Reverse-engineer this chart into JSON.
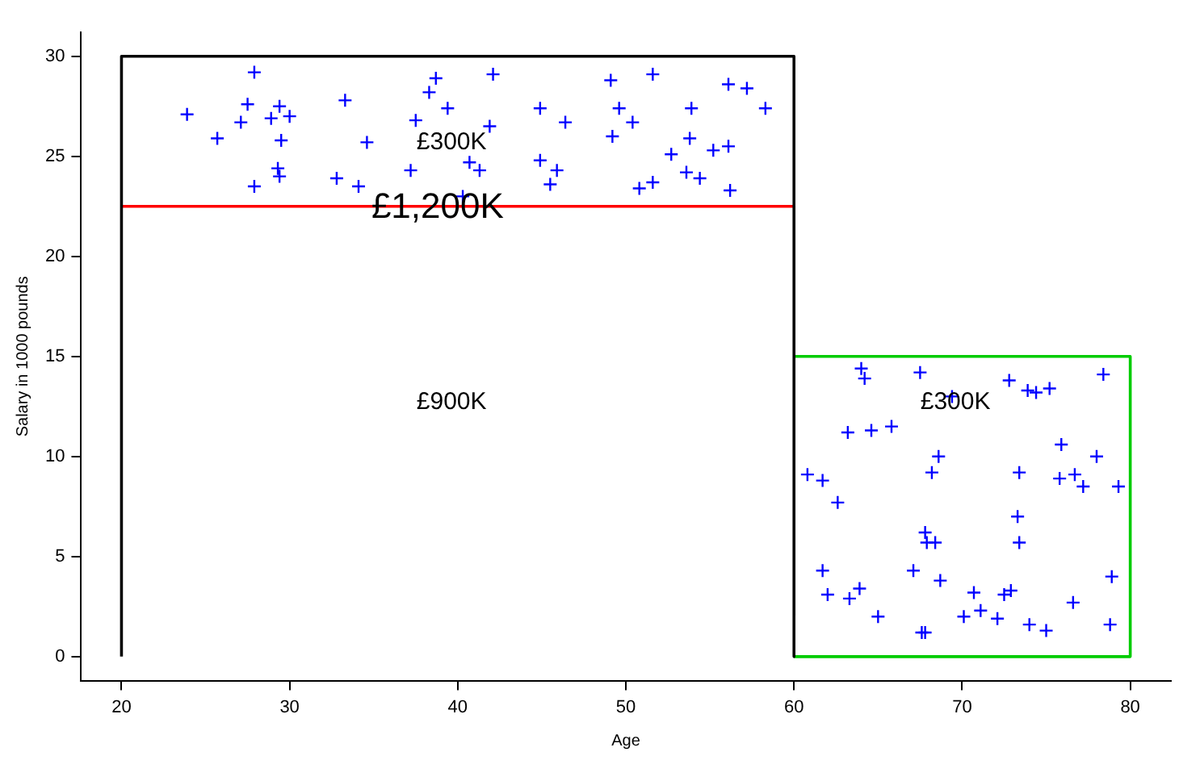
{
  "chart_data": {
    "type": "scatter",
    "xlabel": "Age",
    "ylabel": "Salary in 1000 pounds",
    "xlim": [
      17.6,
      82.4
    ],
    "ylim": [
      -1.2,
      31.2
    ],
    "xticks": [
      20,
      30,
      40,
      50,
      60,
      70,
      80
    ],
    "yticks": [
      0,
      5,
      10,
      15,
      20,
      25,
      30
    ],
    "grid": false,
    "legend": false,
    "marker": "cross",
    "series": [
      {
        "type": "line",
        "color": "#000000",
        "marker": "none",
        "x": [
          20,
          20,
          60,
          60
        ],
        "values": [
          0,
          30,
          30,
          0
        ]
      },
      {
        "type": "line",
        "color": "#00cc00",
        "marker": "none",
        "x": [
          60,
          80,
          80,
          60
        ],
        "values": [
          0,
          0,
          15,
          15
        ]
      },
      {
        "type": "line",
        "color": "#ff0000",
        "marker": "none",
        "x": [
          20,
          60
        ],
        "values": [
          22.5,
          22.5
        ]
      },
      {
        "color": "#0000ff",
        "x": [
          23.9,
          27.9,
          27.5,
          27.1,
          25.7,
          28.9,
          29.4,
          30.0,
          29.5,
          29.3,
          29.4,
          27.9,
          32.8,
          34.1,
          33.3,
          34.6,
          37.2,
          37.5,
          38.3,
          38.7,
          39.4,
          40.3,
          42.1,
          41.9,
          40.7,
          41.3,
          44.9,
          46.4,
          44.9,
          45.9,
          45.5,
          49.1,
          51.6,
          49.6,
          50.4,
          49.2,
          50.8,
          51.6,
          53.9,
          53.8,
          52.7,
          53.6,
          54.4,
          56.1,
          57.2,
          58.3,
          55.2,
          56.1,
          56.2,
          64.0,
          64.2,
          67.5,
          72.8,
          73.9,
          74.4,
          75.2,
          78.4,
          69.4,
          63.2,
          64.6,
          65.8,
          75.9,
          78.0,
          68.6,
          68.2,
          60.8,
          61.7,
          73.4,
          75.8,
          76.7,
          77.2,
          79.3,
          62.6,
          73.3,
          67.8,
          67.9,
          68.4,
          73.4,
          61.7,
          67.1,
          68.7,
          78.9,
          62.0,
          63.9,
          63.3,
          70.7,
          72.5,
          72.9,
          76.6,
          65.0,
          70.1,
          71.1,
          72.1,
          74.0,
          75.0,
          78.8,
          67.6,
          67.8
        ],
        "values": [
          27.1,
          29.2,
          27.6,
          26.7,
          25.9,
          26.9,
          27.5,
          27.0,
          25.8,
          24.4,
          24.0,
          23.5,
          23.9,
          23.5,
          27.8,
          25.7,
          24.3,
          26.8,
          28.2,
          28.9,
          27.4,
          23.0,
          29.1,
          26.5,
          24.7,
          24.3,
          27.4,
          26.7,
          24.8,
          24.3,
          23.6,
          28.8,
          29.1,
          27.4,
          26.7,
          26.0,
          23.4,
          23.7,
          27.4,
          25.9,
          25.1,
          24.2,
          23.9,
          28.6,
          28.4,
          27.4,
          25.3,
          25.5,
          23.3,
          14.4,
          13.9,
          14.2,
          13.8,
          13.3,
          13.2,
          13.4,
          14.1,
          13.0,
          11.2,
          11.3,
          11.5,
          10.6,
          10.0,
          10.0,
          9.2,
          9.1,
          8.8,
          9.2,
          8.9,
          9.1,
          8.5,
          8.5,
          7.7,
          7.0,
          6.2,
          5.7,
          5.7,
          5.7,
          4.3,
          4.3,
          3.8,
          4.0,
          3.1,
          3.4,
          2.9,
          3.2,
          3.1,
          3.3,
          2.7,
          2.0,
          2.0,
          2.3,
          1.9,
          1.6,
          1.3,
          1.6,
          1.2,
          1.2
        ]
      }
    ],
    "annotations": [
      "£300K",
      {
        "text": "£1,200K",
        "x": 38.8,
        "y": 22.4
      },
      "£900K",
      {
        "text": "£300K",
        "x": 69.6,
        "y": 12.7
      }
    ]
  }
}
